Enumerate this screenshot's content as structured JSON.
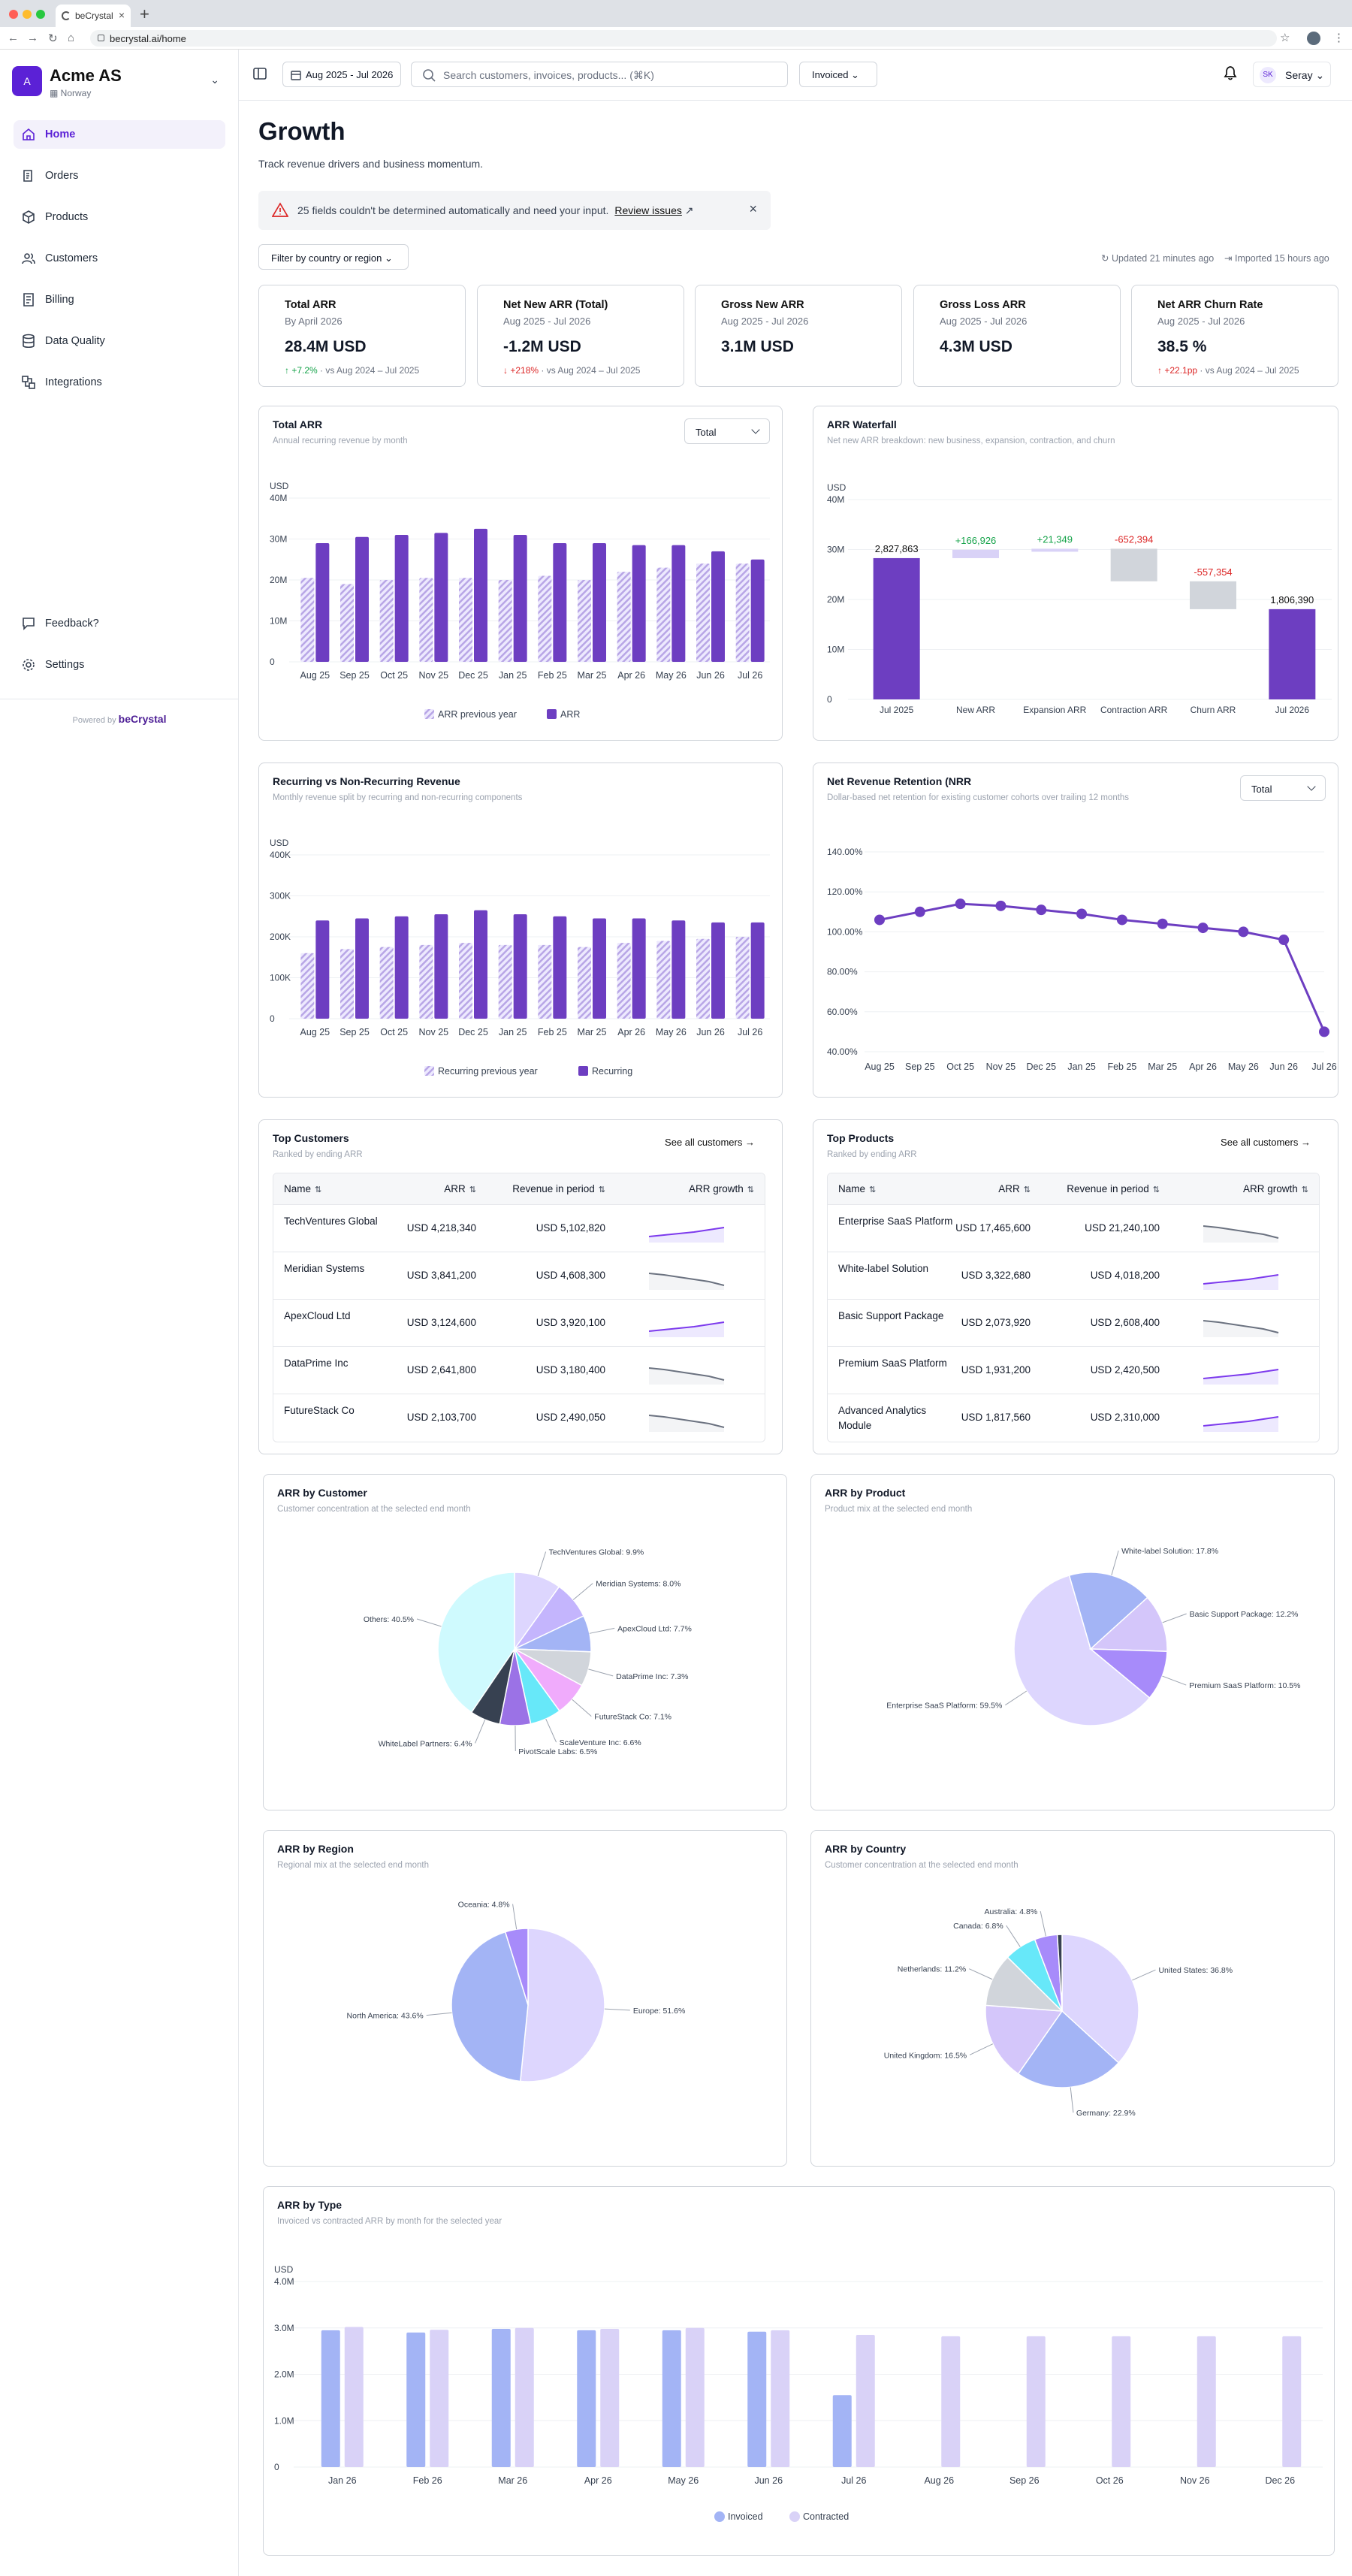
{
  "browser": {
    "tab_title": "beCrystal",
    "url": "becrystal.ai/home"
  },
  "org": {
    "initial": "A",
    "name": "Acme AS",
    "country": "Norway"
  },
  "nav": {
    "home": "Home",
    "orders": "Orders",
    "products": "Products",
    "customers": "Customers",
    "billing": "Billing",
    "data_quality": "Data Quality",
    "integrations": "Integrations",
    "feedback": "Feedback?",
    "settings": "Settings"
  },
  "powered": {
    "prefix": "Powered by",
    "brand": "beCrystal"
  },
  "topbar": {
    "date_range": "Aug 2025 - Jul 2026",
    "search_placeholder": "Search customers, invoices, products... (⌘K)",
    "mode": "Invoiced",
    "user_initials": "SK",
    "user_name": "Seray"
  },
  "page": {
    "title": "Growth",
    "subtitle": "Track revenue drivers and business momentum.",
    "alert_text": "25 fields couldn't be determined automatically and need your input.",
    "alert_link": "Review issues",
    "filter": "Filter by country or region",
    "updated": "Updated 21 minutes ago",
    "imported": "Imported 15 hours ago"
  },
  "kpis": [
    {
      "label": "Total ARR",
      "period": "By April 2026",
      "value": "28.4M USD",
      "delta": "+7.2%",
      "delta_dir": "up",
      "compare": "vs Aug 2024 – Jul 2025"
    },
    {
      "label": "Net New ARR (Total)",
      "period": "Aug 2025 - Jul 2026",
      "value": "-1.2M USD",
      "delta": "+218%",
      "delta_dir": "down",
      "compare": "vs Aug 2024 – Jul 2025"
    },
    {
      "label": "Gross New ARR",
      "period": "Aug 2025 - Jul 2026",
      "value": "3.1M USD",
      "delta": "",
      "delta_dir": "",
      "compare": ""
    },
    {
      "label": "Gross Loss ARR",
      "period": "Aug 2025 - Jul 2026",
      "value": "4.3M USD",
      "delta": "",
      "delta_dir": "",
      "compare": ""
    },
    {
      "label": "Net ARR Churn Rate",
      "period": "Aug 2025 - Jul 2026",
      "value": "38.5 %",
      "delta": "+22.1pp",
      "delta_dir": "down",
      "compare": "vs Aug 2024 – Jul 2025"
    }
  ],
  "colors": {
    "purple": "#6d3ec1",
    "hatch": "#b8a6e6",
    "light_purple": "#d9d2f7",
    "blue": "#a3b4f5",
    "green": "#16a34a",
    "red": "#dc2626",
    "gray": "#d1d5db"
  },
  "chart_data": [
    {
      "id": "total_arr",
      "type": "bar",
      "title": "Total ARR",
      "subtitle": "Annual recurring revenue by month",
      "selector": "Total",
      "unit": "USD",
      "ylim": [
        0,
        40000000
      ],
      "yticks": [
        "0",
        "10M",
        "20M",
        "30M",
        "40M"
      ],
      "categories": [
        "Aug 25",
        "Sep 25",
        "Oct 25",
        "Nov 25",
        "Dec 25",
        "Jan 25",
        "Feb 25",
        "Mar 25",
        "Apr 26",
        "May 26",
        "Jun 26",
        "Jul 26"
      ],
      "series": [
        {
          "name": "ARR previous year",
          "values": [
            20500000,
            19000000,
            20000000,
            20500000,
            20500000,
            20000000,
            21000000,
            20000000,
            22000000,
            23000000,
            24000000,
            24000000
          ]
        },
        {
          "name": "ARR",
          "values": [
            29000000,
            30500000,
            31000000,
            31500000,
            32500000,
            31000000,
            29000000,
            29000000,
            28500000,
            28500000,
            27000000,
            25000000
          ]
        }
      ]
    },
    {
      "id": "arr_waterfall",
      "type": "bar",
      "title": "ARR Waterfall",
      "subtitle": "Net new ARR breakdown: new business, expansion, contraction, and churn",
      "unit": "USD",
      "ylim": [
        0,
        40000000
      ],
      "yticks": [
        "0",
        "10M",
        "20M",
        "30M",
        "40M"
      ],
      "categories": [
        "Jul 2025",
        "New ARR",
        "Expansion ARR",
        "Contraction ARR",
        "Churn ARR",
        "Jul 2026"
      ],
      "values": [
        2827863,
        166926,
        21349,
        -652394,
        -557354,
        1806390
      ],
      "labels": [
        "2,827,863",
        "+166,926",
        "+21,349",
        "-652,394",
        "-557,354",
        "1,806,390"
      ]
    },
    {
      "id": "recurring",
      "type": "bar",
      "title": "Recurring vs Non-Recurring Revenue",
      "subtitle": "Monthly revenue split by recurring and non-recurring components",
      "unit": "USD",
      "ylim": [
        0,
        400000
      ],
      "yticks": [
        "0",
        "100K",
        "200K",
        "300K",
        "400K"
      ],
      "categories": [
        "Aug 25",
        "Sep 25",
        "Oct 25",
        "Nov 25",
        "Dec 25",
        "Jan 25",
        "Feb 25",
        "Mar 25",
        "Apr 26",
        "May 26",
        "Jun 26",
        "Jul 26"
      ],
      "series": [
        {
          "name": "Recurring previous year",
          "values": [
            160000,
            170000,
            175000,
            180000,
            185000,
            180000,
            180000,
            175000,
            185000,
            190000,
            195000,
            200000
          ]
        },
        {
          "name": "Recurring",
          "values": [
            240000,
            245000,
            250000,
            255000,
            265000,
            255000,
            250000,
            245000,
            245000,
            240000,
            235000,
            235000
          ]
        }
      ]
    },
    {
      "id": "nrr",
      "type": "line",
      "title": "Net Revenue Retention (NRR",
      "subtitle": "Dollar-based net retention for existing customer cohorts over trailing 12 months",
      "selector": "Total",
      "ylim": [
        40,
        140
      ],
      "yticks": [
        "40.00%",
        "60.00%",
        "80.00%",
        "100.00%",
        "120.00%",
        "140.00%"
      ],
      "categories": [
        "Aug 25",
        "Sep 25",
        "Oct 25",
        "Nov 25",
        "Dec 25",
        "Jan 25",
        "Feb 25",
        "Mar 25",
        "Apr 26",
        "May 26",
        "Jun 26",
        "Jul 26"
      ],
      "values": [
        106,
        110,
        114,
        113,
        111,
        109,
        106,
        104,
        102,
        100,
        96,
        50
      ]
    },
    {
      "id": "arr_by_customer",
      "type": "pie",
      "title": "ARR by Customer",
      "subtitle": "Customer concentration at the selected end month",
      "slices": [
        {
          "label": "TechVentures Global: 9.9%",
          "value": 9.9,
          "color": "#ddd6fe"
        },
        {
          "label": "Meridian Systems: 8.0%",
          "value": 8.0,
          "color": "#c4b5fd"
        },
        {
          "label": "ApexCloud Ltd: 7.7%",
          "value": 7.7,
          "color": "#a3b4f5"
        },
        {
          "label": "DataPrime Inc: 7.3%",
          "value": 7.3,
          "color": "#d1d5db"
        },
        {
          "label": "FutureStack Co: 7.1%",
          "value": 7.1,
          "color": "#f0abfc"
        },
        {
          "label": "ScaleVenture Inc: 6.6%",
          "value": 6.6,
          "color": "#67e8f9"
        },
        {
          "label": "PivotScale Labs: 6.5%",
          "value": 6.5,
          "color": "#9b72e6"
        },
        {
          "label": "WhiteLabel Partners: 6.4%",
          "value": 6.4,
          "color": "#374151"
        },
        {
          "label": "Others: 40.5%",
          "value": 40.5,
          "color": "#cffafe"
        }
      ]
    },
    {
      "id": "arr_by_product",
      "type": "pie",
      "title": "ARR by Product",
      "subtitle": "Product mix at the selected end month",
      "slices": [
        {
          "label": "Enterprise SaaS Platform: 59.5%",
          "value": 59.5,
          "color": "#ddd6fe"
        },
        {
          "label": "White-label Solution: 17.8%",
          "value": 17.8,
          "color": "#a3b4f5"
        },
        {
          "label": "Basic Support Package: 12.2%",
          "value": 12.2,
          "color": "#d4c6fa"
        },
        {
          "label": "Premium SaaS Platform: 10.5%",
          "value": 10.5,
          "color": "#a78bfa"
        }
      ]
    },
    {
      "id": "arr_by_region",
      "type": "pie",
      "title": "ARR by Region",
      "subtitle": "Regional mix at the selected end month",
      "slices": [
        {
          "label": "Europe: 51.6%",
          "value": 51.6,
          "color": "#ddd6fe"
        },
        {
          "label": "North America: 43.6%",
          "value": 43.6,
          "color": "#a3b4f5"
        },
        {
          "label": "Oceania: 4.8%",
          "value": 4.8,
          "color": "#a78bfa"
        }
      ]
    },
    {
      "id": "arr_by_country",
      "type": "pie",
      "title": "ARR by Country",
      "subtitle": "Customer concentration at the selected end month",
      "slices": [
        {
          "label": "United States: 36.8%",
          "value": 36.8,
          "color": "#ddd6fe"
        },
        {
          "label": "Germany: 22.9%",
          "value": 22.9,
          "color": "#a3b4f5"
        },
        {
          "label": "United Kingdom: 16.5%",
          "value": 16.5,
          "color": "#d4c6fa"
        },
        {
          "label": "Netherlands: 11.2%",
          "value": 11.2,
          "color": "#d1d5db"
        },
        {
          "label": "Canada: 6.8%",
          "value": 6.8,
          "color": "#67e8f9"
        },
        {
          "label": "Australia: 4.8%",
          "value": 4.8,
          "color": "#a78bfa"
        },
        {
          "label": "",
          "value": 1.0,
          "color": "#374151"
        }
      ]
    },
    {
      "id": "arr_by_type",
      "type": "bar",
      "title": "ARR by Type",
      "subtitle": "Invoiced vs contracted ARR by month for the selected year",
      "unit": "USD",
      "ylim": [
        0,
        4000000
      ],
      "yticks": [
        "0",
        "1.0M",
        "2.0M",
        "3.0M",
        "4.0M"
      ],
      "categories": [
        "Jan 26",
        "Feb 26",
        "Mar 26",
        "Apr 26",
        "May 26",
        "Jun 26",
        "Jul 26",
        "Aug 26",
        "Sep 26",
        "Oct 26",
        "Nov 26",
        "Dec 26"
      ],
      "series": [
        {
          "name": "Invoiced",
          "values": [
            2950000,
            2900000,
            2980000,
            2950000,
            2950000,
            2920000,
            1550000,
            null,
            null,
            null,
            null,
            null
          ]
        },
        {
          "name": "Contracted",
          "values": [
            3020000,
            2960000,
            3000000,
            2980000,
            3000000,
            2950000,
            2850000,
            2820000,
            2820000,
            2820000,
            2820000,
            2820000
          ]
        }
      ]
    }
  ],
  "top_customers": {
    "title": "Top Customers",
    "subtitle": "Ranked by ending ARR",
    "see_all": "See all customers",
    "cols": [
      "Name",
      "ARR",
      "Revenue in period",
      "ARR growth"
    ],
    "rows": [
      [
        "TechVentures Global",
        "USD 4,218,340",
        "USD 5,102,820",
        "up"
      ],
      [
        "Meridian Systems",
        "USD 3,841,200",
        "USD 4,608,300",
        "down"
      ],
      [
        "ApexCloud Ltd",
        "USD 3,124,600",
        "USD 3,920,100",
        "up"
      ],
      [
        "DataPrime Inc",
        "USD 2,641,800",
        "USD 3,180,400",
        "down"
      ],
      [
        "FutureStack Co",
        "USD 2,103,700",
        "USD 2,490,050",
        "down"
      ]
    ]
  },
  "top_products": {
    "title": "Top Products",
    "subtitle": "Ranked by ending ARR",
    "see_all": "See all customers",
    "cols": [
      "Name",
      "ARR",
      "Revenue in period",
      "ARR growth"
    ],
    "rows": [
      [
        "Enterprise SaaS Platform",
        "USD 17,465,600",
        "USD 21,240,100",
        "down"
      ],
      [
        "White-label Solution",
        "USD 3,322,680",
        "USD 4,018,200",
        "up"
      ],
      [
        "Basic Support Package",
        "USD 2,073,920",
        "USD 2,608,400",
        "down"
      ],
      [
        "Premium SaaS Platform",
        "USD 1,931,200",
        "USD 2,420,500",
        "up"
      ],
      [
        "Advanced Analytics Module",
        "USD 1,817,560",
        "USD 2,310,000",
        "up"
      ]
    ]
  }
}
